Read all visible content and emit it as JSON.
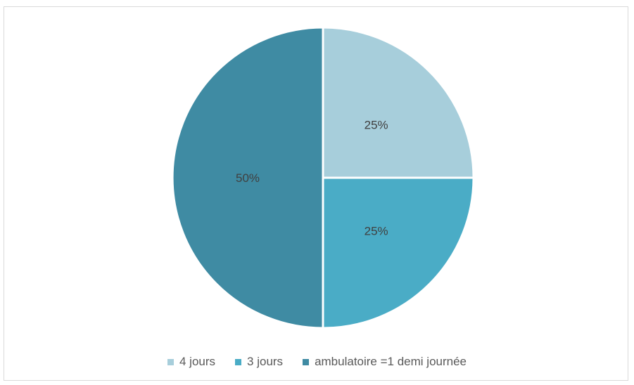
{
  "chart_data": {
    "type": "pie",
    "categories": [
      "4 jours",
      "3 jours",
      "ambulatoire =1 demi journée"
    ],
    "values": [
      25,
      25,
      50
    ],
    "labels": [
      "25%",
      "25%",
      "50%"
    ],
    "colors": [
      "#a7cedb",
      "#4aacc6",
      "#3f8ba3"
    ],
    "legend_position": "bottom",
    "title": ""
  }
}
